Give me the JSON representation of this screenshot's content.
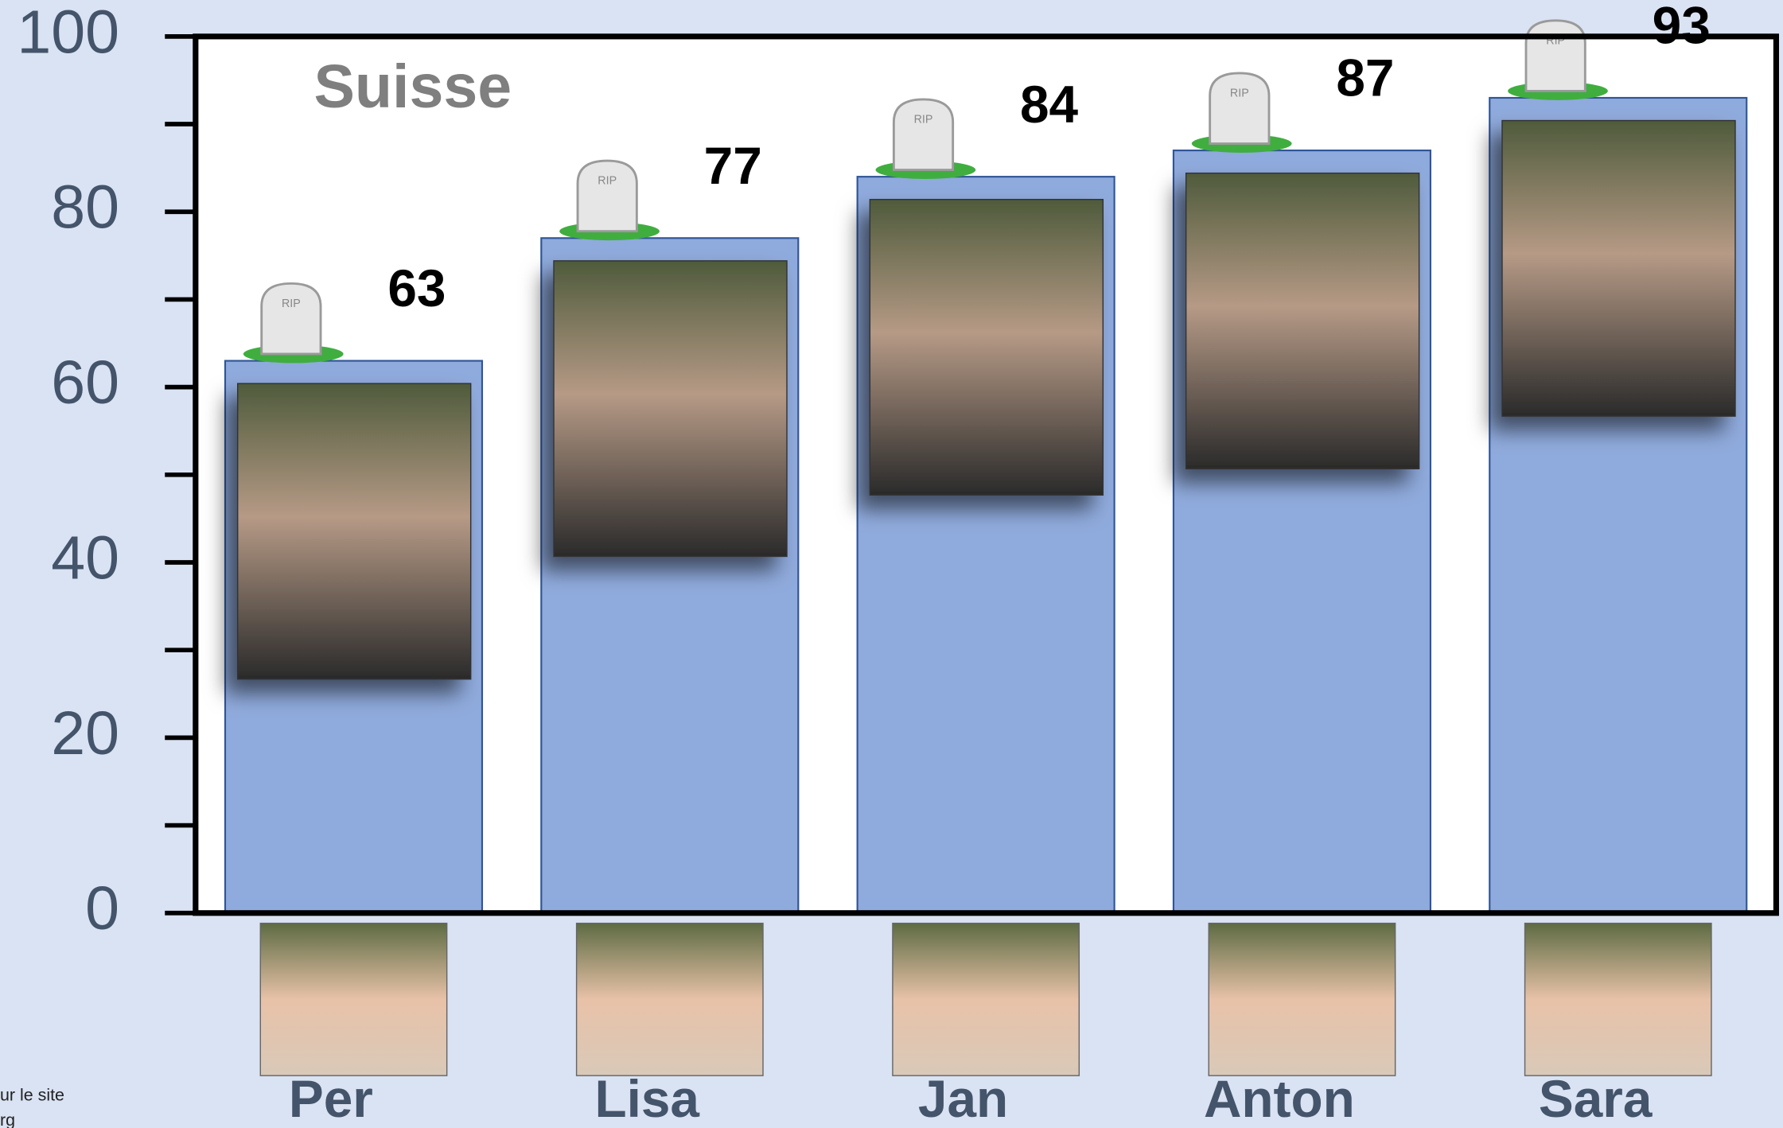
{
  "chart_data": {
    "type": "bar",
    "title": "Suisse",
    "categories": [
      "Per",
      "Lisa",
      "Jan",
      "Anton",
      "Sara"
    ],
    "values": [
      63,
      77,
      84,
      87,
      93
    ],
    "color": "#8faadc",
    "ylim": [
      0,
      100
    ],
    "yticks": [
      0,
      20,
      40,
      60,
      80,
      100
    ],
    "notes": [
      "ur le site",
      "rg"
    ]
  }
}
